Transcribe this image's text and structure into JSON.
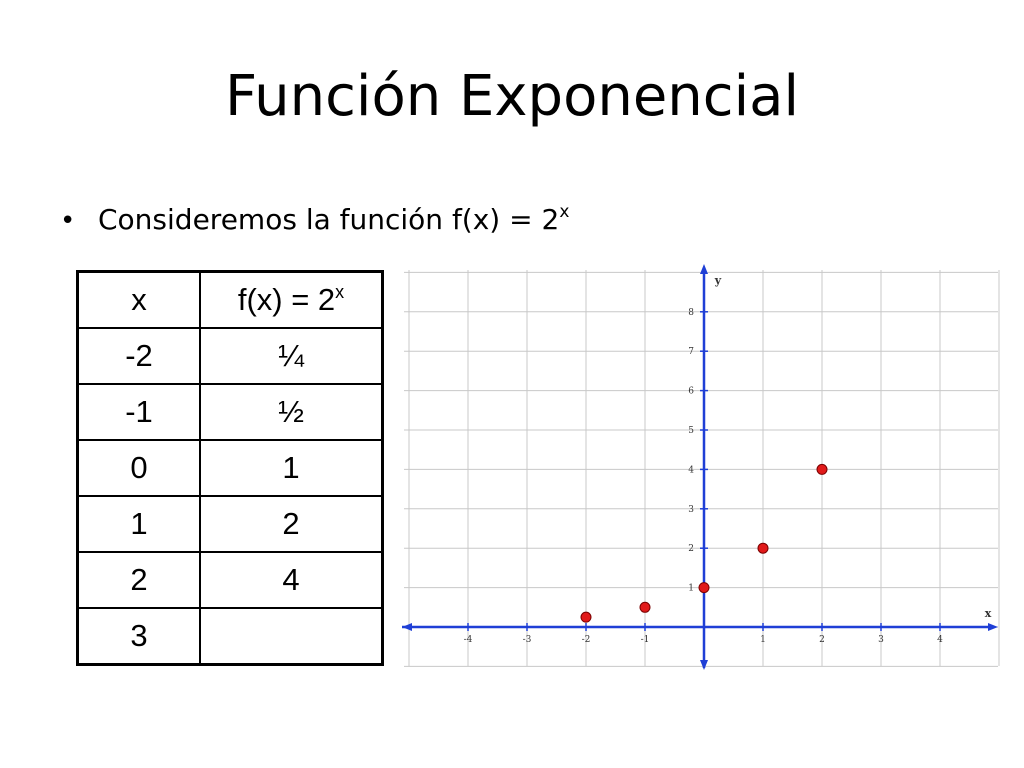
{
  "slide": {
    "title": "Función Exponencial",
    "bullet_text": "Consideremos la función f(x) = 2",
    "bullet_exponent": "x"
  },
  "table": {
    "header_x": "x",
    "header_fx_base": "f(x) = 2",
    "header_fx_exp": "x",
    "rows": [
      {
        "x": "-2",
        "fx": "¼"
      },
      {
        "x": "-1",
        "fx": "½"
      },
      {
        "x": "0",
        "fx": "1"
      },
      {
        "x": "1",
        "fx": "2"
      },
      {
        "x": "2",
        "fx": "4"
      },
      {
        "x": "3",
        "fx": ""
      }
    ]
  },
  "chart_data": {
    "type": "scatter",
    "xlabel": "x",
    "ylabel": "y",
    "xlim": [
      -5,
      5
    ],
    "ylim": [
      -1,
      9
    ],
    "grid": true,
    "x_ticks": [
      "-4",
      "-3",
      "-2",
      "-1",
      "1",
      "2",
      "3",
      "4"
    ],
    "y_ticks": [
      "1",
      "2",
      "3",
      "4",
      "5",
      "6",
      "7",
      "8"
    ],
    "series": [
      {
        "points": [
          [
            -2,
            0.25
          ],
          [
            -1,
            0.5
          ],
          [
            0,
            1
          ],
          [
            1,
            2
          ],
          [
            2,
            4
          ]
        ]
      }
    ],
    "colors": {
      "axis": "#1f3fd6",
      "grid": "#c8c8c8",
      "point": "#e11a1a",
      "point_stroke": "#7a0000"
    }
  }
}
